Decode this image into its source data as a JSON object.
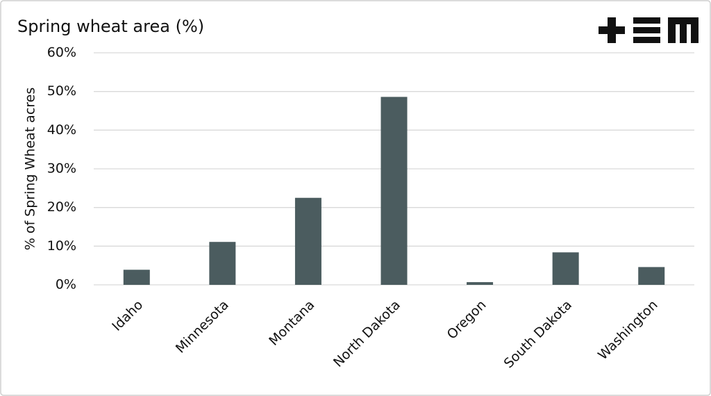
{
  "chart_data": {
    "type": "bar",
    "title": "Spring wheat area (%)",
    "y_label": "% of Spring Wheat acres",
    "categories": [
      "Idaho",
      "Minnesota",
      "Montana",
      "North Dakota",
      "Oregon",
      "South Dakota",
      "Washington"
    ],
    "values": [
      3.9,
      11.1,
      22.5,
      48.6,
      0.7,
      8.4,
      4.6
    ],
    "color": "#4b5c5f",
    "ylim": [
      0,
      60
    ],
    "yticks": [
      {
        "value": 0,
        "label": "0%"
      },
      {
        "value": 10,
        "label": "10%"
      },
      {
        "value": 20,
        "label": "20%"
      },
      {
        "value": 30,
        "label": "30%"
      },
      {
        "value": 40,
        "label": "40%"
      },
      {
        "value": 50,
        "label": "50%"
      },
      {
        "value": 60,
        "label": "60%"
      }
    ],
    "grid": true
  }
}
